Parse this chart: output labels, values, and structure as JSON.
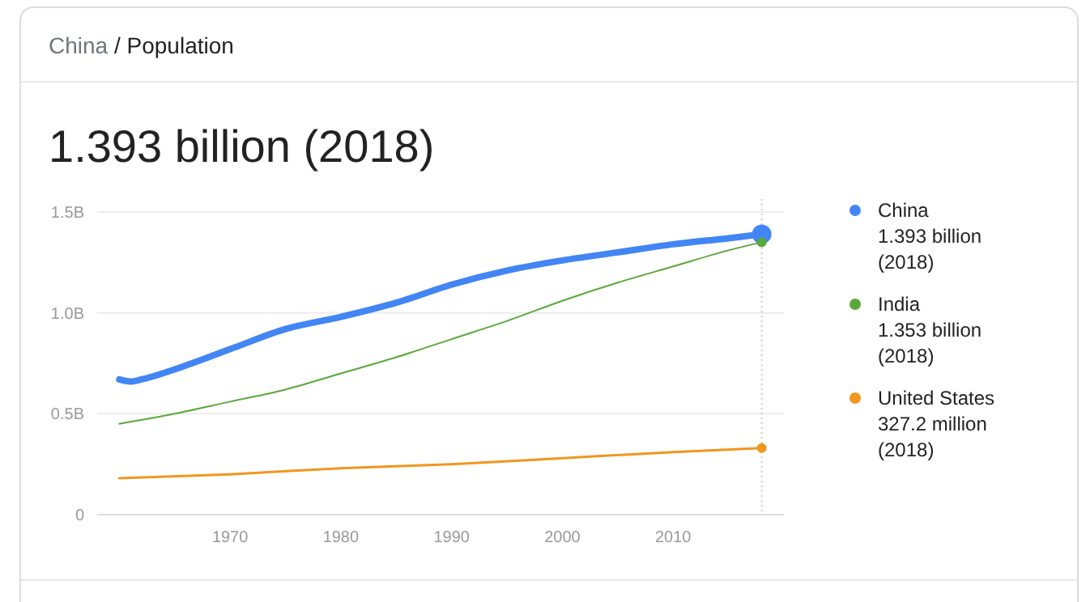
{
  "chart_data": {
    "type": "line",
    "subtitle": "China / Population",
    "title": "1.393 billion (2018)",
    "xlim": [
      1958,
      2020
    ],
    "xticks": [
      1970,
      1980,
      1990,
      2000,
      2010
    ],
    "ylim": [
      0,
      1.5
    ],
    "yticks": [
      0,
      {
        "value": 0.5,
        "label": "0.5B"
      },
      {
        "value": 1,
        "label": "1.0B"
      },
      {
        "value": 1.5,
        "label": "1.5B"
      }
    ],
    "grid": "y",
    "legend": "right",
    "series": [
      {
        "name": "China",
        "color": "#4285f4",
        "x": [
          1960,
          1961,
          1962,
          1965,
          1970,
          1975,
          1980,
          1985,
          1990,
          1995,
          2000,
          2005,
          2010,
          2015,
          2018
        ],
        "values": [
          0.67,
          0.66,
          0.67,
          0.72,
          0.82,
          0.92,
          0.98,
          1.05,
          1.14,
          1.21,
          1.26,
          1.3,
          1.34,
          1.37,
          1.39
        ]
      },
      {
        "name": "India",
        "color": "#5aa83a",
        "x": [
          1960,
          1965,
          1970,
          1975,
          1980,
          1985,
          1990,
          1995,
          2000,
          2005,
          2010,
          2015,
          2018
        ],
        "values": [
          0.45,
          0.5,
          0.56,
          0.62,
          0.7,
          0.78,
          0.87,
          0.96,
          1.06,
          1.15,
          1.23,
          1.31,
          1.35
        ]
      },
      {
        "name": "United States",
        "color": "#f0961e",
        "x": [
          1960,
          1970,
          1980,
          1990,
          2000,
          2010,
          2018
        ],
        "values": [
          0.18,
          0.2,
          0.23,
          0.25,
          0.28,
          0.31,
          0.33
        ]
      },
      {
        "type": "scatter",
        "color": "#4285f4",
        "x": [
          2018
        ],
        "values": [
          1.39
        ]
      },
      {
        "type": "scatter",
        "color": "#5aa83a",
        "x": [
          2018
        ],
        "values": [
          1.35
        ]
      },
      {
        "type": "scatter",
        "color": "#f0961e",
        "x": [
          2018
        ],
        "values": [
          0.33
        ]
      }
    ],
    "ref_lines": [
      {
        "axis": "x",
        "value": 2018,
        "color": "#cccccc",
        "line_style": "dotted"
      }
    ],
    "annotations": [
      "1.393 billion (2018)",
      "1.353 billion (2018)",
      "327.2 million (2018)"
    ]
  }
}
